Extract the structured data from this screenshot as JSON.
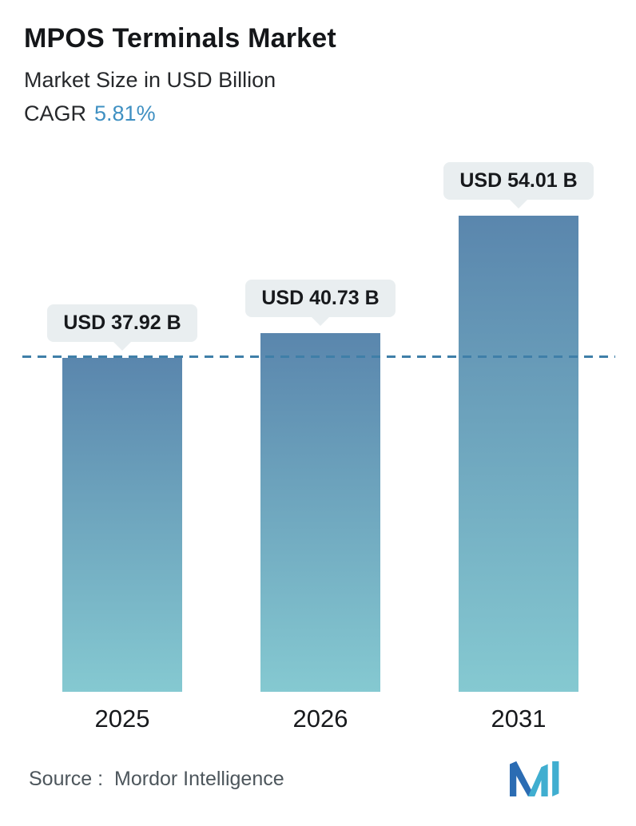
{
  "header": {
    "title": "MPOS Terminals Market",
    "subtitle": "Market Size in USD Billion",
    "cagr_label": "CAGR",
    "cagr_value": "5.81%"
  },
  "chart_data": {
    "type": "bar",
    "title": "MPOS Terminals Market",
    "ylabel": "Market Size in USD Billion",
    "xlabel": "",
    "categories": [
      "2025",
      "2026",
      "2031"
    ],
    "values": [
      37.92,
      40.73,
      54.01
    ],
    "value_labels": [
      "USD 37.92 B",
      "USD 40.73 B",
      "USD 54.01 B"
    ],
    "ylim": [
      0,
      58
    ],
    "grid": false,
    "legend": "none",
    "baseline": 37.92,
    "baseline_style": "dashed",
    "baseline_color": "#3f7fa8",
    "bar_color_top": "#5a86ad",
    "bar_color_bottom": "#85c9d1",
    "label_pill_bg": "#e9eef0"
  },
  "colors": {
    "accent_cagr": "#3f90c2",
    "text_dark": "#17191c",
    "text_gray": "#4d565c",
    "background": "#ffffff"
  },
  "footer": {
    "source_label": "Source :",
    "source_value": "Mordor Intelligence",
    "logo_name": "mordor-intelligence-logo"
  }
}
